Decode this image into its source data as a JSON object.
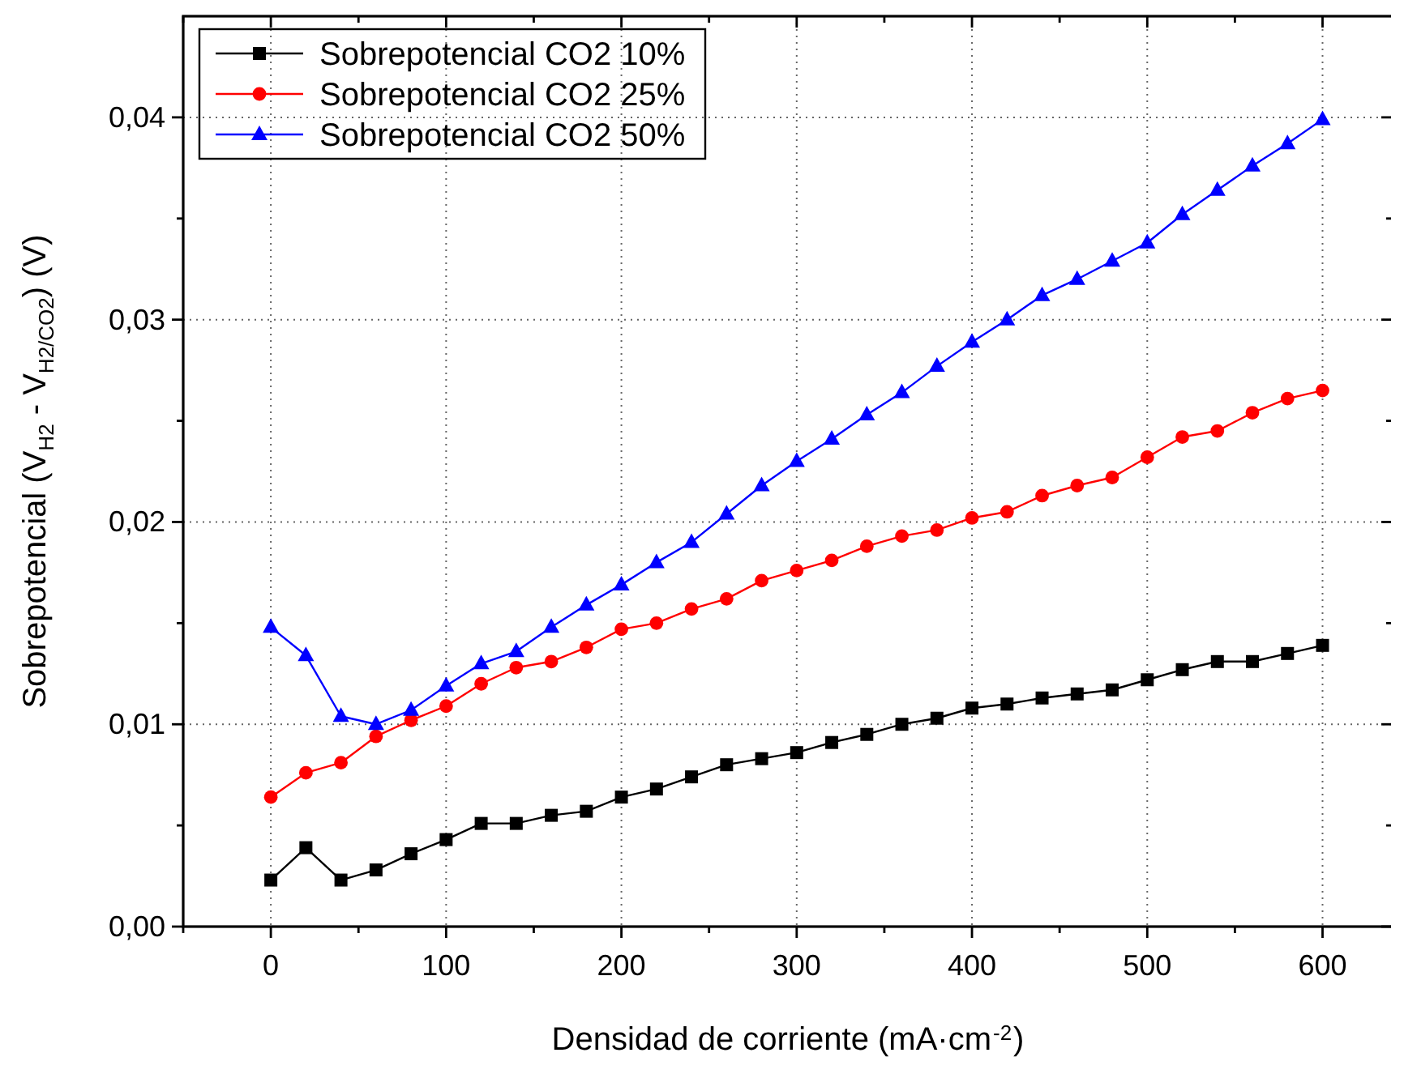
{
  "chart_data": {
    "type": "line",
    "xlabel": "Densidad de corriente (mA·cm$^{-2}$)",
    "ylabel": "Sobrepotencial (V$_{H2}$ - V$_{H2/CO2}$) (V)",
    "x": [
      0,
      20,
      40,
      60,
      80,
      100,
      120,
      140,
      160,
      180,
      200,
      220,
      240,
      260,
      280,
      300,
      320,
      340,
      360,
      380,
      400,
      420,
      440,
      460,
      480,
      500,
      520,
      540,
      560,
      580,
      600
    ],
    "series": [
      {
        "name": "Sobrepotencial CO2 10%",
        "color": "#000000",
        "marker": "square",
        "values": [
          0.0023,
          0.0039,
          0.0023,
          0.0028,
          0.0036,
          0.0043,
          0.0051,
          0.0051,
          0.0055,
          0.0057,
          0.0064,
          0.0068,
          0.0074,
          0.008,
          0.0083,
          0.0086,
          0.0091,
          0.0095,
          0.01,
          0.0103,
          0.0108,
          0.011,
          0.0113,
          0.0115,
          0.0117,
          0.0122,
          0.0127,
          0.0131,
          0.0131,
          0.0135,
          0.0139
        ]
      },
      {
        "name": "Sobrepotencial CO2 25%",
        "color": "#ff0000",
        "marker": "circle",
        "values": [
          0.0064,
          0.0076,
          0.0081,
          0.0094,
          0.0102,
          0.0109,
          0.012,
          0.0128,
          0.0131,
          0.0138,
          0.0147,
          0.015,
          0.0157,
          0.0162,
          0.0171,
          0.0176,
          0.0181,
          0.0188,
          0.0193,
          0.0196,
          0.0202,
          0.0205,
          0.0213,
          0.0218,
          0.0222,
          0.0232,
          0.0242,
          0.0245,
          0.0254,
          0.0261,
          0.0265
        ]
      },
      {
        "name": "Sobrepotencial CO2 50%",
        "color": "#0000ff",
        "marker": "triangle",
        "values": [
          0.0148,
          0.0134,
          0.0104,
          0.01,
          0.0107,
          0.0119,
          0.013,
          0.0136,
          0.0148,
          0.0159,
          0.0169,
          0.018,
          0.019,
          0.0204,
          0.0218,
          0.023,
          0.0241,
          0.0253,
          0.0264,
          0.0277,
          0.0289,
          0.03,
          0.0312,
          0.032,
          0.0329,
          0.0338,
          0.0352,
          0.0364,
          0.0376,
          0.0387,
          0.0399
        ]
      }
    ],
    "xlim": [
      -50,
      640
    ],
    "xticks": [
      {
        "value": -50,
        "label": null
      },
      0,
      {
        "value": 50,
        "label": null
      },
      100,
      {
        "value": 150,
        "label": null
      },
      200,
      {
        "value": 250,
        "label": null
      },
      300,
      {
        "value": 350,
        "label": null
      },
      400,
      {
        "value": 450,
        "label": null
      },
      500,
      {
        "value": 550,
        "label": null
      },
      600
    ],
    "ylim": [
      0,
      0.045
    ],
    "yticks": [
      {
        "value": 0,
        "label": "0,00"
      },
      {
        "value": 0.005,
        "label": null
      },
      {
        "value": 0.01,
        "label": "0,01"
      },
      {
        "value": 0.015,
        "label": null
      },
      {
        "value": 0.02,
        "label": "0,02"
      },
      {
        "value": 0.025,
        "label": null
      },
      {
        "value": 0.03,
        "label": "0,03"
      },
      {
        "value": 0.035,
        "label": null
      },
      {
        "value": 0.04,
        "label": "0,04"
      }
    ],
    "grid": true,
    "legend": "top left",
    "line_style": "solid"
  }
}
